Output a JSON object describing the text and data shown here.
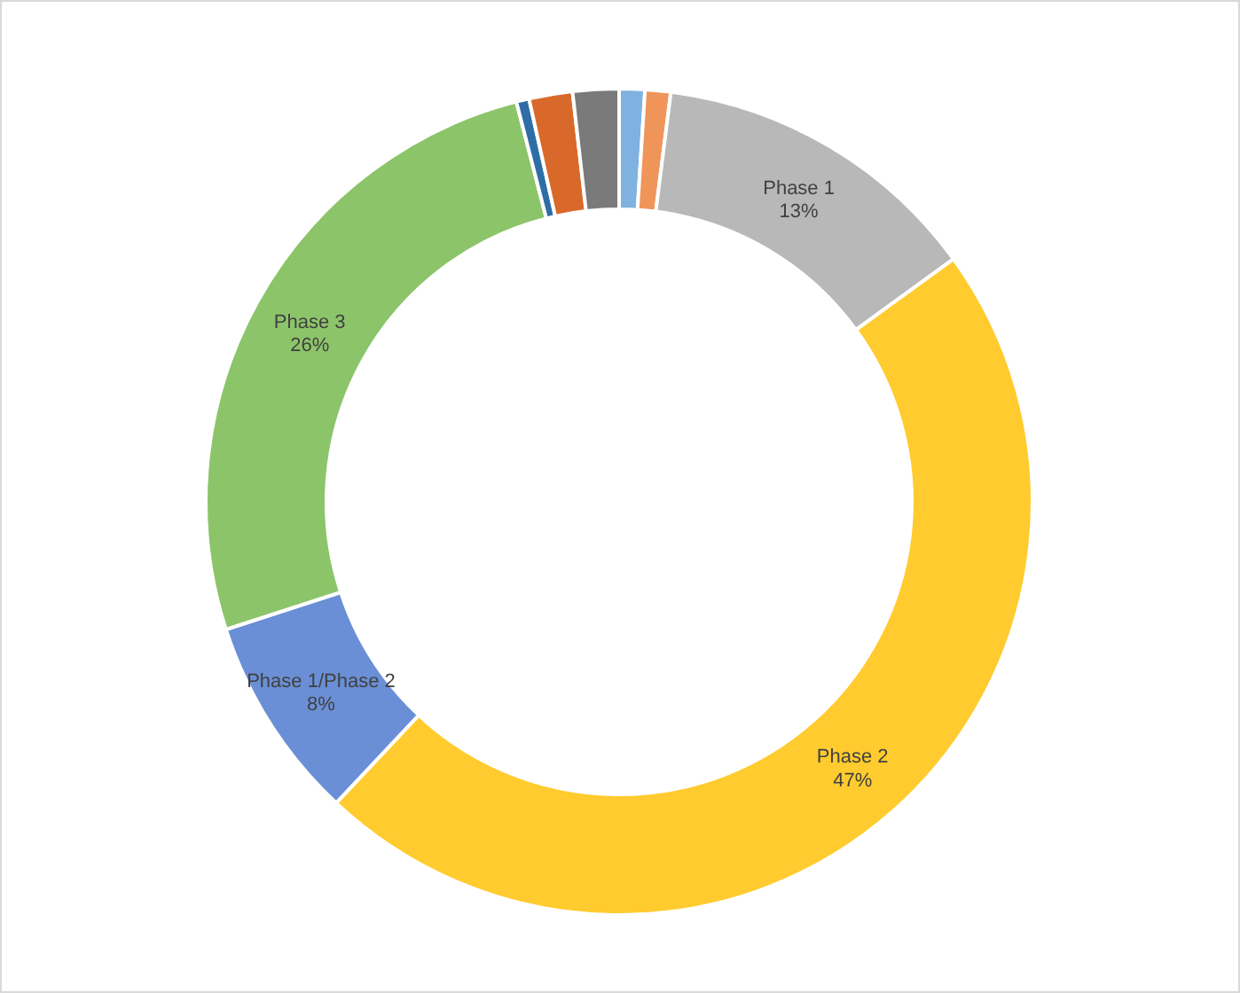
{
  "chart_data": {
    "type": "donut",
    "categories": [
      null,
      null,
      "Phase 1",
      "Phase 2",
      "Phase 1/Phase 2",
      "Phase 3",
      null,
      null,
      null
    ],
    "values": [
      1,
      1,
      13,
      47,
      8,
      26,
      0.5,
      1.7,
      1.8
    ],
    "value_labels": [
      null,
      null,
      "13%",
      "47%",
      "8%",
      "26%",
      null,
      null,
      null
    ],
    "colors": [
      "#7fb2e0",
      "#f0955a",
      "#b8b8b8",
      "#ffcb2e",
      "#6a8fd6",
      "#8cc46a",
      "#2e6ea6",
      "#d9692a",
      "#7a7a7a"
    ]
  }
}
